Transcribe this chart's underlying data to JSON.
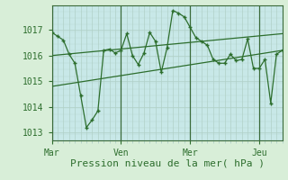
{
  "bg_color": "#d8eed8",
  "plot_bg_color": "#c8e8e8",
  "grid_color": "#b0d0c8",
  "line_color": "#2d6e2d",
  "xlabel": "Pression niveau de la mer( hPa )",
  "xlabel_fontsize": 8,
  "tick_fontsize": 7,
  "xtick_labels": [
    "Mar",
    "Ven",
    "Mer",
    "Jeu"
  ],
  "xtick_positions": [
    0,
    36,
    72,
    108
  ],
  "series1_x": [
    0,
    3,
    6,
    9,
    12,
    15,
    18,
    21,
    24,
    27,
    30,
    33,
    36,
    39,
    42,
    45,
    48,
    51,
    54,
    57,
    60,
    63,
    66,
    69,
    72,
    75,
    78,
    81,
    84,
    87,
    90,
    93,
    96,
    99,
    102,
    105,
    108,
    111,
    114,
    117,
    120
  ],
  "series1_y": [
    1016.9,
    1016.75,
    1016.6,
    1016.05,
    1015.7,
    1014.45,
    1013.2,
    1013.5,
    1013.85,
    1016.2,
    1016.25,
    1016.1,
    1016.2,
    1016.85,
    1016.0,
    1015.65,
    1016.1,
    1016.9,
    1016.55,
    1015.35,
    1016.3,
    1017.75,
    1017.65,
    1017.5,
    1017.1,
    1016.7,
    1016.55,
    1016.4,
    1015.85,
    1015.7,
    1015.7,
    1016.05,
    1015.8,
    1015.85,
    1016.65,
    1015.5,
    1015.5,
    1015.85,
    1014.15,
    1016.05,
    1016.2
  ],
  "trend1_x": [
    0,
    120
  ],
  "trend1_y": [
    1014.8,
    1016.2
  ],
  "trend2_x": [
    0,
    120
  ],
  "trend2_y": [
    1016.0,
    1016.85
  ],
  "vline_positions": [
    0,
    36,
    72,
    108
  ],
  "ylabel_ticks": [
    1013,
    1014,
    1015,
    1016,
    1017
  ],
  "xmin": 0,
  "xmax": 120,
  "ymin": 1012.7,
  "ymax": 1017.95
}
